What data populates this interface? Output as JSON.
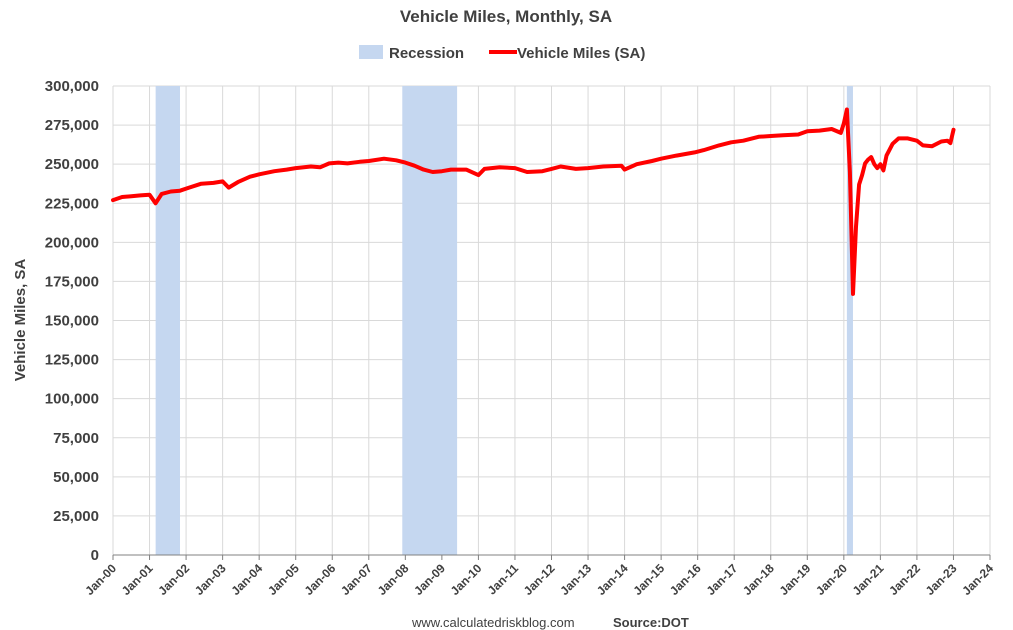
{
  "chart_data": {
    "type": "line",
    "title": "Vehicle Miles, Monthly, SA",
    "ylabel": "Vehicle Miles, SA",
    "xlabel": "",
    "ylim": [
      0,
      300000
    ],
    "xlim": [
      "2000-01",
      "2024-01"
    ],
    "yticks": [
      "0",
      "25,000",
      "50,000",
      "75,000",
      "100,000",
      "125,000",
      "150,000",
      "175,000",
      "200,000",
      "225,000",
      "250,000",
      "275,000",
      "300,000"
    ],
    "xticks": [
      "Jan-00",
      "Jan-01",
      "Jan-02",
      "Jan-03",
      "Jan-04",
      "Jan-05",
      "Jan-06",
      "Jan-07",
      "Jan-08",
      "Jan-09",
      "Jan-10",
      "Jan-11",
      "Jan-12",
      "Jan-13",
      "Jan-14",
      "Jan-15",
      "Jan-16",
      "Jan-17",
      "Jan-18",
      "Jan-19",
      "Jan-20",
      "Jan-21",
      "Jan-22",
      "Jan-23",
      "Jan-24"
    ],
    "grid": true,
    "legend_position": "top-center",
    "legend": [
      {
        "name": "Recession",
        "kind": "band",
        "color": "#c5d7f0"
      },
      {
        "name": "Vehicle Miles (SA)",
        "kind": "line",
        "color": "#ff0000"
      }
    ],
    "recessions": [
      {
        "start": "2001-03",
        "end": "2001-11"
      },
      {
        "start": "2007-12",
        "end": "2009-06"
      },
      {
        "start": "2020-02",
        "end": "2020-04"
      }
    ],
    "series": [
      {
        "name": "Vehicle Miles (SA)",
        "color": "#ff0000",
        "points": [
          [
            "2000-01",
            227000
          ],
          [
            "2000-04",
            229000
          ],
          [
            "2000-07",
            229500
          ],
          [
            "2000-10",
            230000
          ],
          [
            "2001-01",
            230500
          ],
          [
            "2001-03",
            225000
          ],
          [
            "2001-05",
            231000
          ],
          [
            "2001-08",
            232500
          ],
          [
            "2001-11",
            233000
          ],
          [
            "2002-02",
            235000
          ],
          [
            "2002-06",
            237500
          ],
          [
            "2002-10",
            238000
          ],
          [
            "2003-01",
            239000
          ],
          [
            "2003-03",
            235000
          ],
          [
            "2003-06",
            238500
          ],
          [
            "2003-10",
            242000
          ],
          [
            "2004-01",
            243500
          ],
          [
            "2004-06",
            245500
          ],
          [
            "2004-10",
            246500
          ],
          [
            "2005-01",
            247500
          ],
          [
            "2005-06",
            248500
          ],
          [
            "2005-09",
            248000
          ],
          [
            "2005-12",
            250500
          ],
          [
            "2006-03",
            251000
          ],
          [
            "2006-06",
            250500
          ],
          [
            "2006-10",
            251500
          ],
          [
            "2007-01",
            252000
          ],
          [
            "2007-06",
            253500
          ],
          [
            "2007-10",
            252500
          ],
          [
            "2008-01",
            251000
          ],
          [
            "2008-04",
            249000
          ],
          [
            "2008-07",
            246500
          ],
          [
            "2008-10",
            245000
          ],
          [
            "2009-01",
            245500
          ],
          [
            "2009-04",
            246500
          ],
          [
            "2009-09",
            246500
          ],
          [
            "2010-01",
            243000
          ],
          [
            "2010-03",
            247000
          ],
          [
            "2010-08",
            248000
          ],
          [
            "2011-01",
            247500
          ],
          [
            "2011-05",
            245000
          ],
          [
            "2011-10",
            245500
          ],
          [
            "2012-01",
            247000
          ],
          [
            "2012-04",
            248500
          ],
          [
            "2012-09",
            247000
          ],
          [
            "2013-01",
            247500
          ],
          [
            "2013-06",
            248500
          ],
          [
            "2013-12",
            249000
          ],
          [
            "2014-01",
            246500
          ],
          [
            "2014-05",
            250000
          ],
          [
            "2014-10",
            252000
          ],
          [
            "2015-01",
            253500
          ],
          [
            "2015-06",
            255500
          ],
          [
            "2015-12",
            257500
          ],
          [
            "2016-03",
            259000
          ],
          [
            "2016-08",
            262000
          ],
          [
            "2016-12",
            264000
          ],
          [
            "2017-04",
            265000
          ],
          [
            "2017-09",
            267500
          ],
          [
            "2018-01",
            268000
          ],
          [
            "2018-05",
            268500
          ],
          [
            "2018-10",
            269000
          ],
          [
            "2019-01",
            271000
          ],
          [
            "2019-05",
            271500
          ],
          [
            "2019-09",
            272500
          ],
          [
            "2019-12",
            270000
          ],
          [
            "2020-01",
            276000
          ],
          [
            "2020-02",
            285000
          ],
          [
            "2020-03",
            245000
          ],
          [
            "2020-04",
            167000
          ],
          [
            "2020-05",
            210000
          ],
          [
            "2020-06",
            237000
          ],
          [
            "2020-07",
            243000
          ],
          [
            "2020-08",
            250500
          ],
          [
            "2020-09",
            253000
          ],
          [
            "2020-10",
            254500
          ],
          [
            "2020-11",
            250000
          ],
          [
            "2020-12",
            247500
          ],
          [
            "2021-01",
            250000
          ],
          [
            "2021-02",
            246000
          ],
          [
            "2021-03",
            255500
          ],
          [
            "2021-05",
            263000
          ],
          [
            "2021-07",
            266500
          ],
          [
            "2021-10",
            266500
          ],
          [
            "2022-01",
            265000
          ],
          [
            "2022-03",
            262000
          ],
          [
            "2022-06",
            261500
          ],
          [
            "2022-09",
            264500
          ],
          [
            "2022-11",
            265000
          ],
          [
            "2022-12",
            263500
          ],
          [
            "2023-01",
            272000
          ]
        ]
      }
    ]
  },
  "footer": {
    "website": "www.calculatedriskblog.com",
    "source": "Source:DOT"
  }
}
